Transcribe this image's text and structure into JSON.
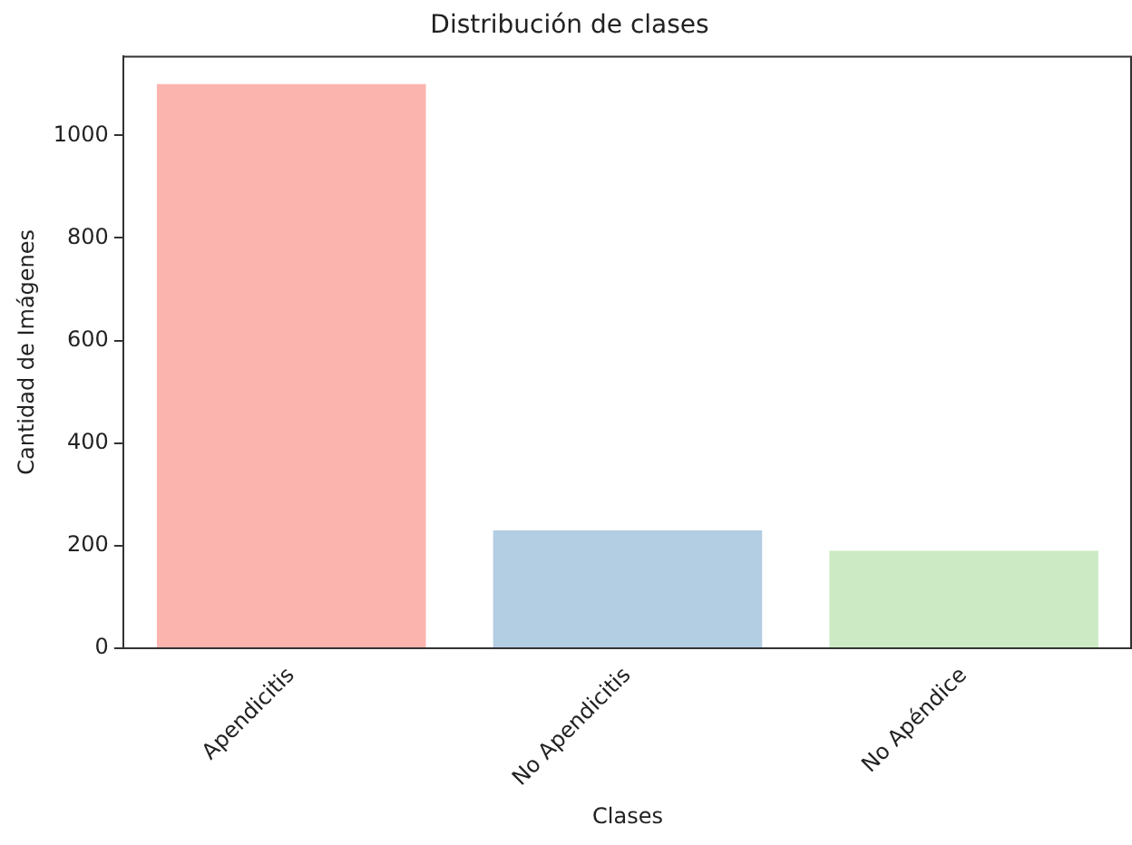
{
  "chart_data": {
    "type": "bar",
    "title": "Distribución de clases",
    "xlabel": "Clases",
    "ylabel": "Cantidad de Imágenes",
    "categories": [
      "Apendicitis",
      "No Apendicitis",
      "No Apéndice"
    ],
    "values": [
      1100,
      230,
      190
    ],
    "colors": [
      "#fbb4ae",
      "#b3cde3",
      "#ccebc5"
    ],
    "ylim": [
      0,
      1155
    ],
    "yticks": [
      0,
      200,
      400,
      600,
      800,
      1000
    ],
    "grid": false,
    "legend": false
  }
}
